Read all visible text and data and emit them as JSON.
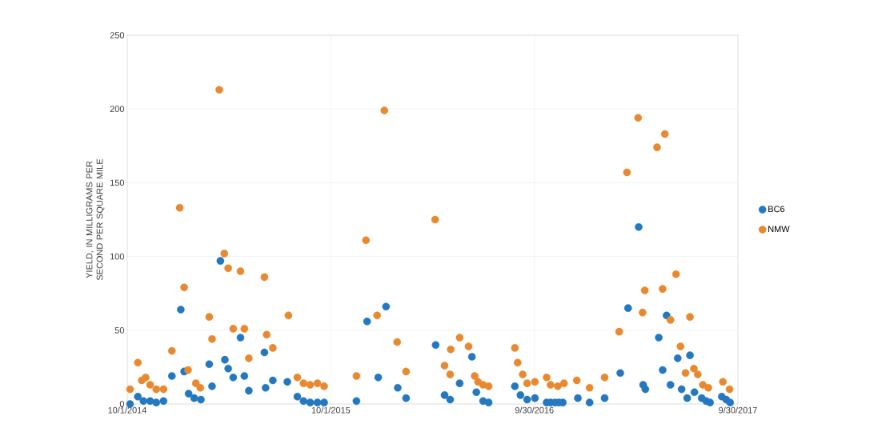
{
  "chart_data": {
    "type": "scatter",
    "ylabel": "YIELD, IN MILLIGRAMS PER SECOND PER SQUARE MILE",
    "xlim": [
      "2014-10-01",
      "2017-09-30"
    ],
    "xticks": [
      {
        "value": "2014-10-01",
        "label": "10/1/2014"
      },
      {
        "value": "2015-10-01",
        "label": "10/1/2015"
      },
      {
        "value": "2016-09-30",
        "label": "9/30/2016"
      },
      {
        "value": "2017-09-30",
        "label": "9/30/2017"
      }
    ],
    "ylim": [
      0,
      250
    ],
    "yticks": [
      0,
      50,
      100,
      150,
      200,
      250
    ],
    "grid": true,
    "legend": "right",
    "marker": "circle",
    "series": [
      {
        "name": "BC6",
        "color": "#2478c0",
        "x": [
          "2014-10-06",
          "2014-10-20",
          "2014-10-30",
          "2014-11-11",
          "2014-11-22",
          "2014-12-05",
          "2014-12-20",
          "2015-01-05",
          "2015-01-11",
          "2015-01-19",
          "2015-01-29",
          "2015-02-10",
          "2015-02-25",
          "2015-03-02",
          "2015-03-17",
          "2015-03-25",
          "2015-03-31",
          "2015-04-09",
          "2015-04-22",
          "2015-04-29",
          "2015-05-07",
          "2015-06-04",
          "2015-06-06",
          "2015-06-19",
          "2015-07-15",
          "2015-08-02",
          "2015-08-13",
          "2015-08-25",
          "2015-09-07",
          "2015-09-19",
          "2015-11-16",
          "2015-12-05",
          "2015-12-25",
          "2016-01-08",
          "2016-01-29",
          "2016-02-13",
          "2016-04-06",
          "2016-04-22",
          "2016-05-02",
          "2016-05-19",
          "2016-06-10",
          "2016-06-18",
          "2016-06-30",
          "2016-07-10",
          "2016-08-26",
          "2016-09-05",
          "2016-09-17",
          "2016-10-01",
          "2016-10-22",
          "2016-10-29",
          "2016-11-06",
          "2016-11-13",
          "2016-11-20",
          "2016-12-17",
          "2017-01-07",
          "2017-02-03",
          "2017-03-03",
          "2017-03-17",
          "2017-04-05",
          "2017-04-13",
          "2017-04-17",
          "2017-05-11",
          "2017-05-18",
          "2017-05-25",
          "2017-06-01",
          "2017-06-14",
          "2017-06-21",
          "2017-07-01",
          "2017-07-06",
          "2017-07-14",
          "2017-07-27",
          "2017-08-04",
          "2017-08-11",
          "2017-09-01",
          "2017-09-09",
          "2017-09-16"
        ],
        "values": [
          0,
          5,
          2,
          2,
          1,
          2,
          19,
          64,
          22,
          7,
          4,
          3,
          27,
          12,
          97,
          30,
          24,
          18,
          45,
          19,
          9,
          35,
          11,
          16,
          15,
          5,
          2,
          1,
          1,
          1,
          2,
          56,
          18,
          66,
          11,
          4,
          40,
          6,
          3,
          14,
          32,
          8,
          2,
          1,
          12,
          6,
          3,
          4,
          1,
          1,
          1,
          1,
          1,
          4,
          1,
          4,
          21,
          65,
          120,
          13,
          10,
          45,
          23,
          60,
          13,
          31,
          10,
          4,
          33,
          8,
          4,
          2,
          1,
          5,
          3,
          1
        ]
      },
      {
        "name": "NMW",
        "color": "#e8892f",
        "x": [
          "2014-10-06",
          "2014-10-20",
          "2014-10-27",
          "2014-11-03",
          "2014-11-11",
          "2014-11-22",
          "2014-12-05",
          "2014-12-20",
          "2015-01-03",
          "2015-01-11",
          "2015-01-18",
          "2015-02-01",
          "2015-02-09",
          "2015-02-25",
          "2015-03-02",
          "2015-03-15",
          "2015-03-24",
          "2015-03-31",
          "2015-04-09",
          "2015-04-22",
          "2015-04-29",
          "2015-05-07",
          "2015-06-04",
          "2015-06-08",
          "2015-06-19",
          "2015-07-17",
          "2015-08-02",
          "2015-08-13",
          "2015-08-25",
          "2015-09-07",
          "2015-09-19",
          "2015-11-16",
          "2015-12-03",
          "2015-12-23",
          "2016-01-05",
          "2016-01-28",
          "2016-02-13",
          "2016-04-05",
          "2016-04-22",
          "2016-05-02",
          "2016-05-03",
          "2016-05-19",
          "2016-06-04",
          "2016-06-15",
          "2016-06-21",
          "2016-06-30",
          "2016-07-10",
          "2016-08-26",
          "2016-08-31",
          "2016-09-09",
          "2016-09-17",
          "2016-10-01",
          "2016-10-22",
          "2016-10-29",
          "2016-11-11",
          "2016-11-22",
          "2016-12-15",
          "2017-01-07",
          "2017-02-03",
          "2017-03-01",
          "2017-03-15",
          "2017-04-04",
          "2017-04-12",
          "2017-04-16",
          "2017-05-08",
          "2017-05-18",
          "2017-05-22",
          "2017-06-01",
          "2017-06-11",
          "2017-06-19",
          "2017-06-28",
          "2017-07-06",
          "2017-07-13",
          "2017-07-20",
          "2017-07-29",
          "2017-08-08",
          "2017-09-03",
          "2017-09-15"
        ],
        "values": [
          10,
          28,
          16,
          18,
          13,
          10,
          10,
          36,
          133,
          79,
          23,
          14,
          11,
          59,
          44,
          213,
          102,
          92,
          51,
          90,
          51,
          31,
          86,
          47,
          38,
          60,
          18,
          14,
          13,
          14,
          12,
          19,
          111,
          60,
          199,
          42,
          22,
          125,
          26,
          20,
          37,
          45,
          39,
          19,
          15,
          13,
          12,
          38,
          28,
          20,
          14,
          15,
          18,
          13,
          12,
          14,
          16,
          11,
          18,
          49,
          157,
          194,
          62,
          77,
          174,
          78,
          183,
          57,
          88,
          39,
          21,
          59,
          24,
          20,
          13,
          11,
          15,
          10
        ]
      }
    ]
  }
}
